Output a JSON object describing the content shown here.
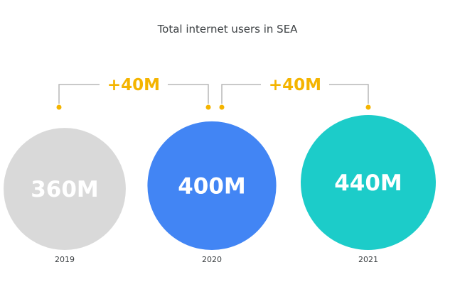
{
  "colors": {
    "bubble": [
      "#d9d9d9",
      "#4285f4",
      "#1cccc9"
    ],
    "accent": "#f4b400",
    "connector": "#b7b7b7",
    "text": "#3c4043"
  },
  "chart_data": {
    "type": "bubble",
    "title": "Total internet users in SEA",
    "unit": "M",
    "categories": [
      "2019",
      "2020",
      "2021"
    ],
    "values": [
      360,
      400,
      440
    ],
    "value_labels": [
      "360M",
      "400M",
      "440M"
    ],
    "changes": [
      {
        "from": "2019",
        "to": "2020",
        "value": 40,
        "label": "+40M"
      },
      {
        "from": "2020",
        "to": "2021",
        "value": 40,
        "label": "+40M"
      }
    ]
  }
}
